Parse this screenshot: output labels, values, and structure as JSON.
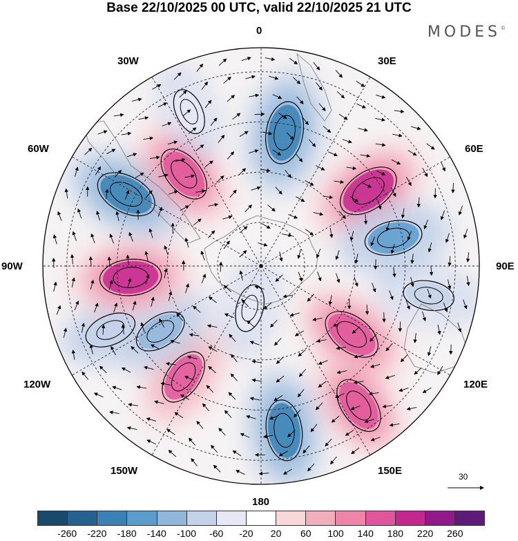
{
  "title": "Base 22/10/2025 00 UTC, valid 22/10/2025 21 UTC",
  "brand": {
    "name": "MODES",
    "mark": "©"
  },
  "longitude_labels": {
    "n0": "0",
    "n30e": "30E",
    "n60e": "60E",
    "n90e": "90E",
    "n120e": "120E",
    "n150e": "150E",
    "n180": "180",
    "n150w": "150W",
    "n120w": "120W",
    "n90w": "90W",
    "n60w": "60W",
    "n30w": "30W"
  },
  "vector_scale": {
    "value": "30"
  },
  "colorbar": {
    "colors": [
      "#1a4a6b",
      "#25628f",
      "#3a82b5",
      "#5a9ccb",
      "#8fb7da",
      "#c4d2e8",
      "#e6e8f4",
      "#ffffff",
      "#f8d7d9",
      "#f1afbd",
      "#ec85a8",
      "#e0569a",
      "#c4288e",
      "#92198a",
      "#5e1a78"
    ],
    "ticks": [
      "-260",
      "-220",
      "-180",
      "-140",
      "-100",
      "-60",
      "-20",
      "20",
      "60",
      "100",
      "140",
      "180",
      "220",
      "260"
    ]
  },
  "field_features": [
    {
      "sign": "negative",
      "lon": 10,
      "rho": 0.62,
      "value": -240
    },
    {
      "sign": "positive",
      "lon": 55,
      "rho": 0.6,
      "value": 250
    },
    {
      "sign": "negative",
      "lon": 78,
      "rho": 0.62,
      "value": -180
    },
    {
      "sign": "negative",
      "lon": 100,
      "rho": 0.78,
      "value": -100
    },
    {
      "sign": "positive",
      "lon": 127,
      "rho": 0.52,
      "value": 210
    },
    {
      "sign": "positive",
      "lon": 145,
      "rho": 0.78,
      "value": 190
    },
    {
      "sign": "negative",
      "lon": 172,
      "rho": 0.76,
      "value": -220
    },
    {
      "sign": "negative",
      "lon": 195,
      "rho": 0.2,
      "value": -60
    },
    {
      "sign": "positive",
      "lon": 215,
      "rho": 0.62,
      "value": 170
    },
    {
      "sign": "negative",
      "lon": 237,
      "rho": 0.55,
      "value": -130
    },
    {
      "sign": "negative",
      "lon": 247,
      "rho": 0.75,
      "value": -110
    },
    {
      "sign": "positive",
      "lon": 265,
      "rho": 0.6,
      "value": 230
    },
    {
      "sign": "negative",
      "lon": 298,
      "rho": 0.7,
      "value": -230
    },
    {
      "sign": "positive",
      "lon": 320,
      "rho": 0.55,
      "value": 190
    },
    {
      "sign": "negative",
      "lon": 335,
      "rho": 0.78,
      "value": -50
    }
  ]
}
